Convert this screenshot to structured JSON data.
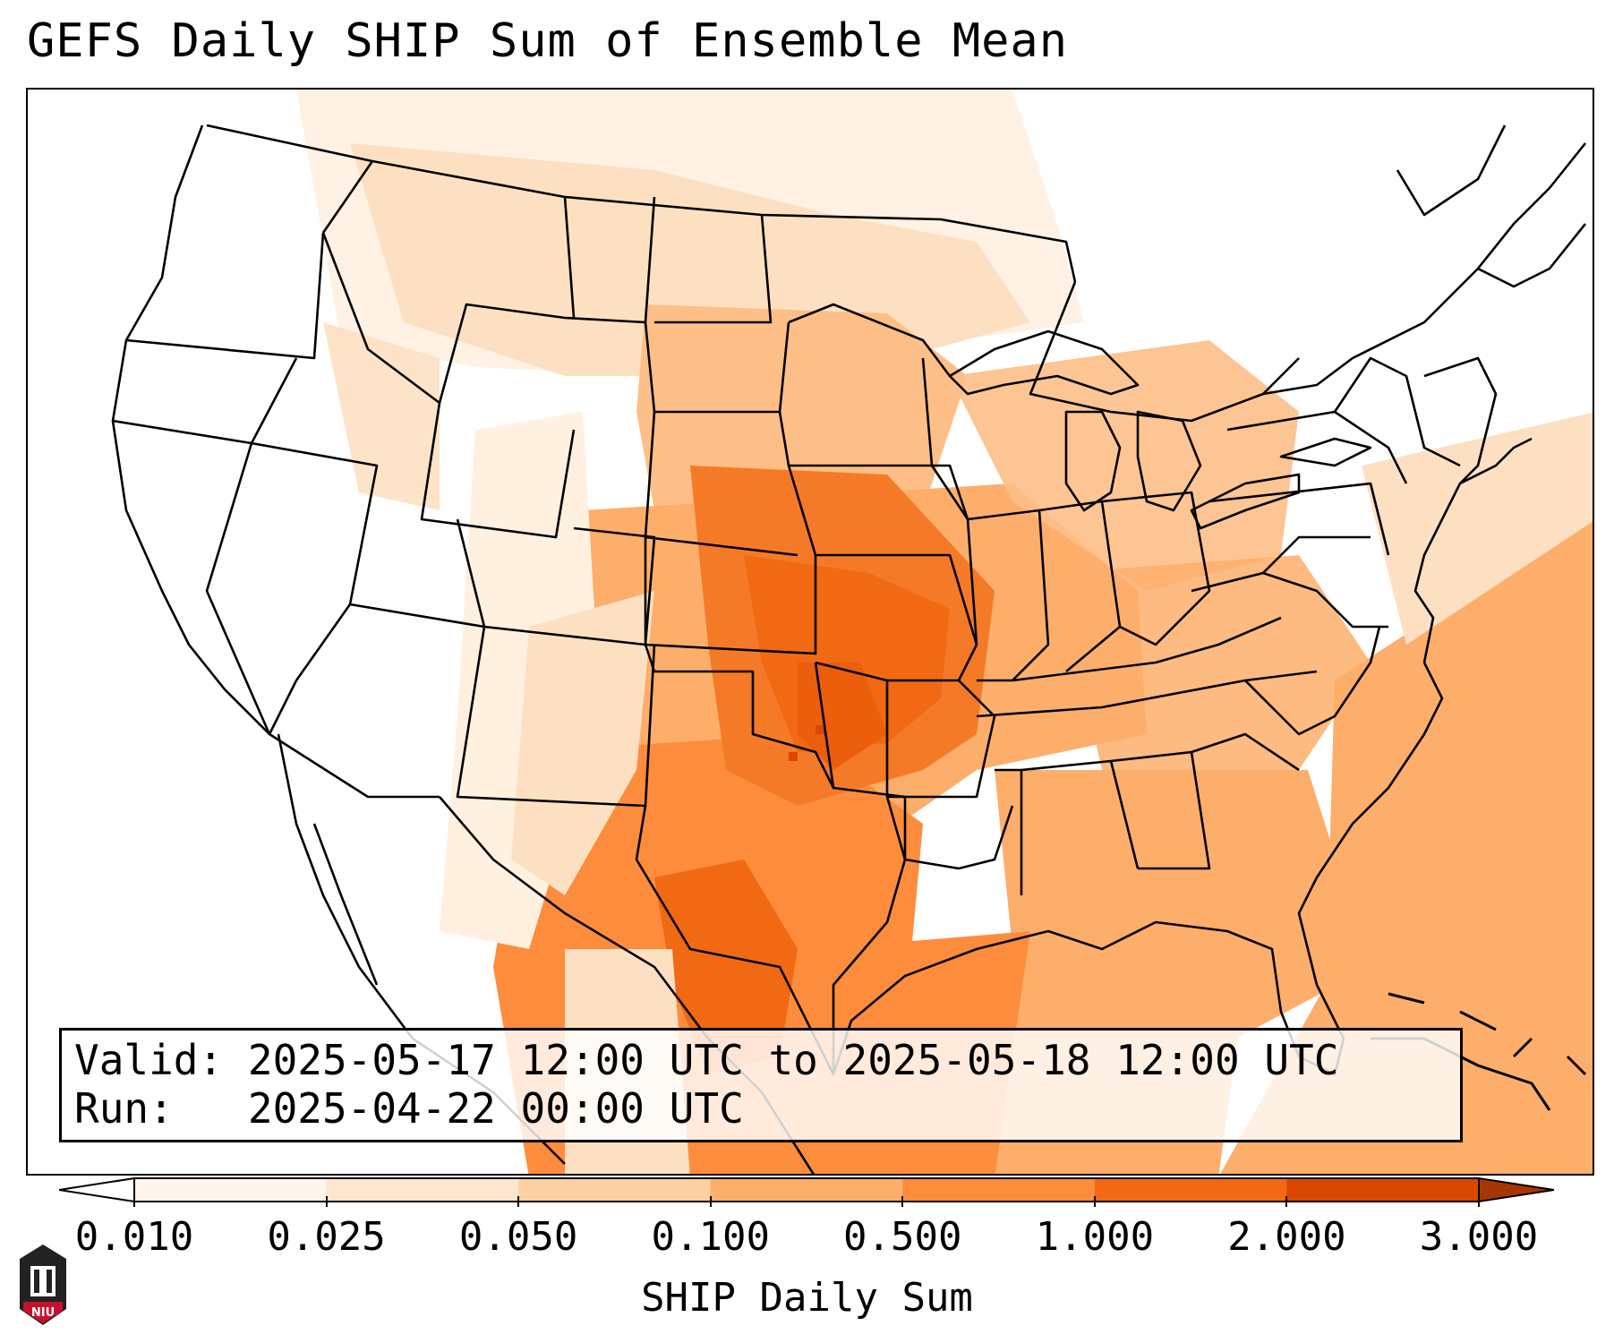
{
  "title": "GEFS Daily SHIP Sum of Ensemble Mean",
  "info": {
    "valid_label": "Valid:",
    "valid_value": "2025-05-17 12:00 UTC to 2025-05-18 12:00 UTC",
    "run_label": "Run:",
    "run_value": "2025-04-22 00:00 UTC"
  },
  "colorbar": {
    "label": "SHIP Daily Sum",
    "ticks": [
      "0.010",
      "0.025",
      "0.050",
      "0.100",
      "0.500",
      "1.000",
      "2.000",
      "3.000"
    ],
    "colors": [
      "#fff5eb",
      "#fee6ce",
      "#fdd0a2",
      "#fdae6b",
      "#fd8d3c",
      "#f16913",
      "#d94801",
      "#a63603"
    ]
  },
  "logo": {
    "text": "NIU"
  }
}
